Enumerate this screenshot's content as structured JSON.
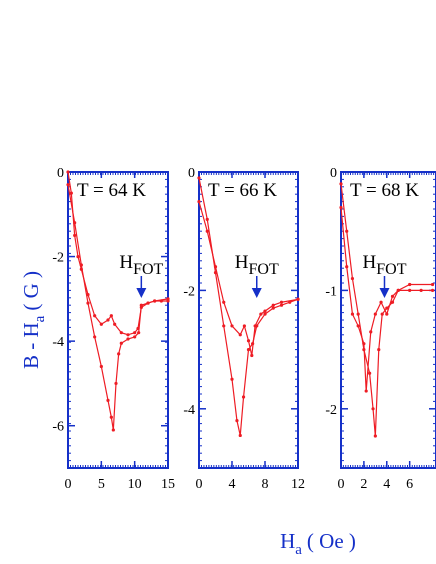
{
  "figure": {
    "xlabel": [
      "H",
      "a",
      "( Oe )"
    ],
    "ylabel": [
      "B - H",
      "a",
      "( G )"
    ]
  },
  "chart_data": [
    {
      "type": "line",
      "annotation": "T = 64 K",
      "fot": {
        "label": "H",
        "sub": "FOT",
        "x": 11
      },
      "xlim": [
        0,
        15
      ],
      "xticks": [
        0,
        5,
        10,
        15
      ],
      "ylim": [
        -7,
        0
      ],
      "yticks": [
        0,
        -2,
        -4,
        -6
      ],
      "series": [
        {
          "color": "#ee1c24",
          "x": [
            0,
            1,
            2,
            3,
            4,
            5,
            6,
            6.5,
            6.8,
            7.2,
            7.6,
            8,
            9,
            10,
            10.6,
            11,
            12,
            13,
            14,
            15
          ],
          "values": [
            -0.3,
            -1.2,
            -2.2,
            -3.1,
            -3.9,
            -4.6,
            -5.4,
            -5.8,
            -6.1,
            -5.0,
            -4.3,
            -4.05,
            -3.95,
            -3.9,
            -3.8,
            -3.15,
            -3.1,
            -3.05,
            -3.05,
            -3.05
          ]
        },
        {
          "color": "#ee1c24",
          "x": [
            0,
            0.5,
            1,
            1.5,
            2,
            3,
            4,
            5,
            6,
            6.5,
            7,
            8,
            9,
            10,
            10.5,
            11,
            12,
            13,
            15
          ],
          "values": [
            0,
            -0.5,
            -1.5,
            -2.0,
            -2.3,
            -2.9,
            -3.4,
            -3.6,
            -3.5,
            -3.4,
            -3.6,
            -3.8,
            -3.85,
            -3.8,
            -3.7,
            -3.2,
            -3.1,
            -3.05,
            -3.0
          ]
        }
      ]
    },
    {
      "type": "line",
      "annotation": "T = 66 K",
      "fot": {
        "label": "H",
        "sub": "FOT",
        "x": 7
      },
      "xlim": [
        0,
        12
      ],
      "xticks": [
        0,
        4,
        8,
        12
      ],
      "ylim": [
        -5,
        0
      ],
      "yticks": [
        0,
        -2,
        -4
      ],
      "series": [
        {
          "color": "#ee1c24",
          "x": [
            0,
            1,
            2,
            3,
            4,
            4.6,
            5,
            5.4,
            6,
            6.5,
            7,
            8,
            9,
            10,
            11,
            12
          ],
          "values": [
            -0.1,
            -0.8,
            -1.7,
            -2.6,
            -3.5,
            -4.2,
            -4.45,
            -3.8,
            -3.0,
            -2.9,
            -2.6,
            -2.4,
            -2.3,
            -2.25,
            -2.2,
            -2.15
          ]
        },
        {
          "color": "#ee1c24",
          "x": [
            0,
            1,
            2,
            3,
            4,
            5,
            5.5,
            6,
            6.4,
            6.8,
            7.5,
            8,
            9,
            10,
            12
          ],
          "values": [
            -0.5,
            -1.0,
            -1.6,
            -2.2,
            -2.6,
            -2.75,
            -2.6,
            -2.85,
            -3.1,
            -2.6,
            -2.4,
            -2.35,
            -2.25,
            -2.2,
            -2.15
          ]
        }
      ]
    },
    {
      "type": "line",
      "annotation": "T = 68 K",
      "fot": {
        "label": "H",
        "sub": "FOT",
        "x": 3.8
      },
      "xlim": [
        0,
        8.3
      ],
      "xticks": [
        0,
        2,
        4,
        6
      ],
      "ylim": [
        -2.5,
        0
      ],
      "yticks": [
        0,
        -1,
        -2
      ],
      "series": [
        {
          "color": "#ee1c24",
          "x": [
            0,
            0.5,
            1,
            1.5,
            2,
            2.5,
            2.8,
            3,
            3.3,
            3.6,
            4,
            4.5,
            5,
            6,
            7,
            8
          ],
          "values": [
            -0.1,
            -0.5,
            -0.9,
            -1.2,
            -1.5,
            -1.7,
            -2.0,
            -2.23,
            -1.5,
            -1.2,
            -1.15,
            -1.1,
            -1.0,
            -1.0,
            -1.0,
            -1.0
          ]
        },
        {
          "color": "#ee1c24",
          "x": [
            0,
            0.5,
            1,
            1.5,
            2,
            2.2,
            2.6,
            3,
            3.5,
            4,
            4.5,
            5,
            6,
            8
          ],
          "values": [
            -0.3,
            -0.8,
            -1.2,
            -1.3,
            -1.45,
            -1.85,
            -1.35,
            -1.2,
            -1.1,
            -1.2,
            -1.05,
            -1.0,
            -0.95,
            -0.95
          ]
        }
      ]
    }
  ]
}
